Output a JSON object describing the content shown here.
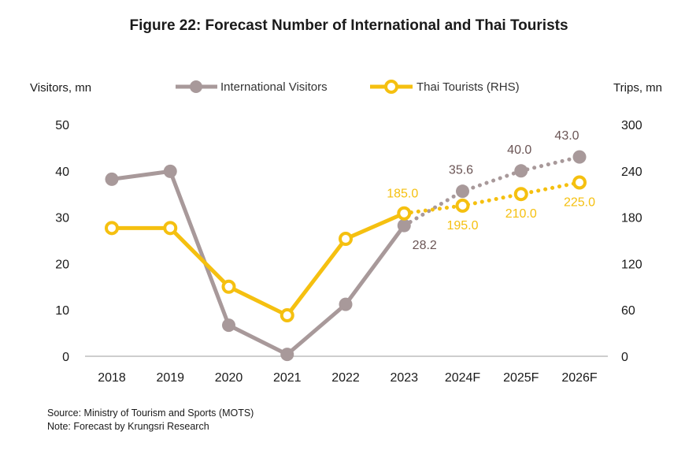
{
  "chart_data": {
    "type": "line",
    "title": "Figure 22: Forecast Number of International and Thai Tourists",
    "ylabel_left": "Visitors, mn",
    "ylabel_right": "Trips, mn",
    "categories": [
      "2018",
      "2019",
      "2020",
      "2021",
      "2022",
      "2023",
      "2024F",
      "2025F",
      "2026F"
    ],
    "ylim_left": [
      0,
      50
    ],
    "yticks_left": [
      "0",
      "10",
      "20",
      "30",
      "40",
      "50"
    ],
    "ylim_right": [
      0,
      300
    ],
    "yticks_right": [
      "0",
      "60",
      "120",
      "180",
      "240",
      "300"
    ],
    "grid": false,
    "legend_position": "top",
    "series": [
      {
        "name": "International Visitors",
        "axis": "left",
        "color": "#a8999a",
        "marker": "filled-circle",
        "values": [
          38.2,
          39.9,
          6.7,
          0.4,
          11.2,
          28.2,
          35.6,
          40.0,
          43.0
        ],
        "forecast_from_index": 5,
        "data_labels": {
          "5": "28.2",
          "6": "35.6",
          "7": "40.0",
          "8": "43.0"
        }
      },
      {
        "name": "Thai Tourists (RHS)",
        "axis": "right",
        "color": "#f5c010",
        "marker": "hollow-circle",
        "values": [
          166,
          166,
          90,
          53,
          152,
          185.0,
          195.0,
          210.0,
          225.0
        ],
        "forecast_from_index": 5,
        "data_labels": {
          "5": "185.0",
          "6": "195.0",
          "7": "210.0",
          "8": "225.0"
        }
      }
    ]
  },
  "notes": {
    "source": "Source: Ministry of Tourism and Sports (MOTS)",
    "note": "Note: Forecast by Krungsri Research"
  },
  "colors": {
    "intl_label": "#6b5555",
    "thai_label": "#f5c010"
  }
}
